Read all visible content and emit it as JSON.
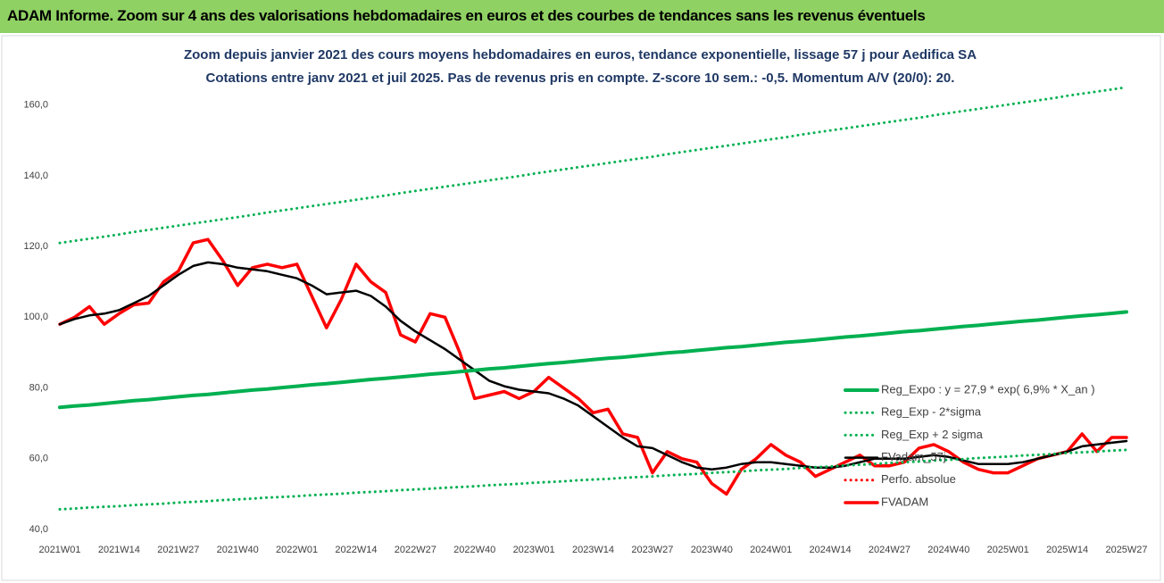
{
  "header": {
    "title": "ADAM Informe. Zoom sur 4 ans des valorisations hebdomadaires en euros et des courbes de tendances sans les revenus éventuels"
  },
  "chart_data": {
    "type": "line",
    "title": "Zoom depuis janvier 2021 des cours moyens hebdomadaires en euros, tendance exponentielle, lissage 57 j pour Aedifica SA",
    "subtitle": "Cotations entre janv 2021 et juil 2025. Pas de revenus pris en compte. Z-score 10 sem.: -0,5. Momentum A/V (20/0): 20.",
    "categories": [
      "2021W01",
      null,
      null,
      null,
      "2021W14",
      null,
      null,
      null,
      "2021W27",
      null,
      null,
      null,
      "2021W40",
      null,
      null,
      null,
      "2022W01",
      null,
      null,
      null,
      "2022W14",
      null,
      null,
      null,
      "2022W27",
      null,
      null,
      null,
      "2022W40",
      null,
      null,
      null,
      "2023W01",
      null,
      null,
      null,
      "2023W14",
      null,
      null,
      null,
      "2023W27",
      null,
      null,
      null,
      "2023W40",
      null,
      null,
      null,
      "2024W01",
      null,
      null,
      null,
      "2024W14",
      null,
      null,
      null,
      "2024W27",
      null,
      null,
      null,
      "2024W40",
      null,
      null,
      null,
      "2025W01",
      null,
      null,
      null,
      "2025W14",
      null,
      null,
      null,
      "2025W27"
    ],
    "ylim": [
      40,
      170
    ],
    "yticks": [
      {
        "value": 40,
        "label": "40,0"
      },
      {
        "value": 60,
        "label": "60,0"
      },
      {
        "value": 80,
        "label": "80,0"
      },
      {
        "value": 100,
        "label": "100,0"
      },
      {
        "value": 120,
        "label": "120,0"
      },
      {
        "value": 140,
        "label": "140,0"
      },
      {
        "value": 160,
        "label": "160,0"
      }
    ],
    "grid": false,
    "legend": "right",
    "series": [
      {
        "name": "Reg_Expo : y = 27,9 * exp( 6,9% * X_an )",
        "color": "#00b050",
        "style": "solid",
        "values": [
          74.5,
          74.9,
          75.2,
          75.6,
          76.0,
          76.4,
          76.7,
          77.1,
          77.5,
          77.9,
          78.2,
          78.6,
          79.0,
          79.4,
          79.7,
          80.1,
          80.5,
          80.9,
          81.2,
          81.6,
          82.0,
          82.4,
          82.7,
          83.1,
          83.5,
          83.9,
          84.2,
          84.6,
          85.0,
          85.4,
          85.7,
          86.1,
          86.5,
          86.9,
          87.2,
          87.6,
          88.0,
          88.4,
          88.7,
          89.1,
          89.5,
          89.9,
          90.2,
          90.6,
          91.0,
          91.4,
          91.7,
          92.1,
          92.5,
          92.9,
          93.2,
          93.6,
          94.0,
          94.4,
          94.7,
          95.1,
          95.5,
          95.9,
          96.2,
          96.6,
          97.0,
          97.4,
          97.7,
          98.1,
          98.5,
          98.9,
          99.2,
          99.6,
          100.0,
          100.4,
          100.7,
          101.1,
          101.5
        ]
      },
      {
        "name": "Reg_Exp - 2*sigma",
        "color": "#00b050",
        "style": "dotted",
        "values": [
          45.7,
          45.9,
          46.2,
          46.4,
          46.6,
          46.9,
          47.1,
          47.3,
          47.6,
          47.8,
          48.0,
          48.3,
          48.5,
          48.7,
          49.0,
          49.2,
          49.4,
          49.7,
          49.9,
          50.1,
          50.4,
          50.6,
          50.8,
          51.1,
          51.3,
          51.5,
          51.8,
          52.0,
          52.2,
          52.5,
          52.7,
          52.9,
          53.2,
          53.4,
          53.6,
          53.9,
          54.1,
          54.3,
          54.6,
          54.8,
          55.0,
          55.3,
          55.5,
          55.7,
          56.0,
          56.2,
          56.4,
          56.7,
          56.9,
          57.1,
          57.4,
          57.6,
          57.8,
          58.1,
          58.3,
          58.5,
          58.8,
          59.0,
          59.2,
          59.5,
          59.7,
          59.9,
          60.2,
          60.4,
          60.6,
          60.9,
          61.1,
          61.3,
          61.6,
          61.8,
          62.0,
          62.3,
          62.5
        ]
      },
      {
        "name": "Reg_Exp + 2 sigma",
        "color": "#00b050",
        "style": "dotted",
        "values": [
          121.0,
          121.6,
          122.2,
          122.8,
          123.4,
          124.1,
          124.7,
          125.3,
          125.9,
          126.5,
          127.1,
          127.7,
          128.3,
          128.9,
          129.6,
          130.2,
          130.8,
          131.4,
          132.0,
          132.6,
          133.2,
          133.8,
          134.4,
          135.1,
          135.7,
          136.3,
          136.9,
          137.5,
          138.1,
          138.7,
          139.3,
          139.9,
          140.6,
          141.2,
          141.8,
          142.4,
          143.0,
          143.6,
          144.2,
          144.8,
          145.4,
          146.1,
          146.7,
          147.3,
          147.9,
          148.5,
          149.1,
          149.7,
          150.3,
          150.9,
          151.6,
          152.2,
          152.8,
          153.4,
          154.0,
          154.6,
          155.2,
          155.8,
          156.4,
          157.1,
          157.7,
          158.3,
          158.9,
          159.5,
          160.1,
          160.7,
          161.3,
          161.9,
          162.6,
          163.2,
          163.8,
          164.4,
          165.0
        ]
      },
      {
        "name": "FVadam_57j",
        "color": "#000000",
        "style": "solid",
        "values": [
          98,
          99.5,
          100.5,
          101,
          102,
          104,
          106,
          109,
          112,
          114.5,
          115.5,
          115,
          114,
          113.5,
          113,
          112,
          111,
          109,
          106.5,
          107,
          107.5,
          106,
          103,
          99,
          96,
          93.5,
          91,
          88,
          85,
          82,
          80.5,
          79.5,
          79,
          78.5,
          77,
          75,
          72,
          69,
          66,
          63.5,
          63,
          61,
          59,
          57.5,
          57,
          57.5,
          58.5,
          59,
          59,
          58.5,
          58,
          57.5,
          57.5,
          58,
          59,
          60,
          60,
          60,
          60.5,
          61,
          60.5,
          59.5,
          58.5,
          58.5,
          58.5,
          59,
          60,
          61,
          62,
          63.5,
          64,
          64.5,
          65
        ]
      },
      {
        "name": "Perfo. absolue",
        "color": "#ff0000",
        "style": "dotted"
      },
      {
        "name": "FVADAM",
        "color": "#ff0000",
        "style": "solid",
        "values": [
          98,
          100,
          103,
          98,
          101,
          103.5,
          104,
          110,
          113,
          121,
          122,
          116,
          109,
          114,
          115,
          114,
          115,
          106,
          97,
          105,
          115,
          110,
          107,
          95,
          93,
          101,
          100,
          90,
          77,
          78,
          79,
          77,
          79,
          83,
          80,
          77,
          73,
          74,
          67,
          66,
          56,
          62,
          60,
          59,
          53,
          50,
          57,
          60,
          64,
          61,
          59,
          55,
          57,
          59,
          61,
          58,
          58,
          59,
          63,
          64,
          62,
          59,
          57,
          56,
          56,
          58,
          60,
          61,
          62,
          67,
          62,
          66,
          66
        ]
      }
    ]
  }
}
